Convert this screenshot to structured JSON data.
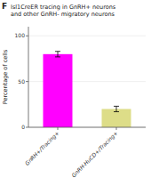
{
  "chart_data": {
    "type": "bar",
    "title": "Isl1CreER tracing in GnRH+ neurons\nand other GnRH- migratory neurons",
    "panel_label": "F",
    "categories": [
      "GnRH+/Tracing+",
      "GnRH-HuCD+/Tracing+"
    ],
    "values": [
      80,
      20
    ],
    "errors": [
      3,
      3
    ],
    "colors": [
      "#FF00FF",
      "#DDDD88"
    ],
    "ylabel": "Percentage of cells",
    "ylim": [
      0,
      110
    ],
    "yticks": [
      0,
      50,
      100
    ]
  }
}
